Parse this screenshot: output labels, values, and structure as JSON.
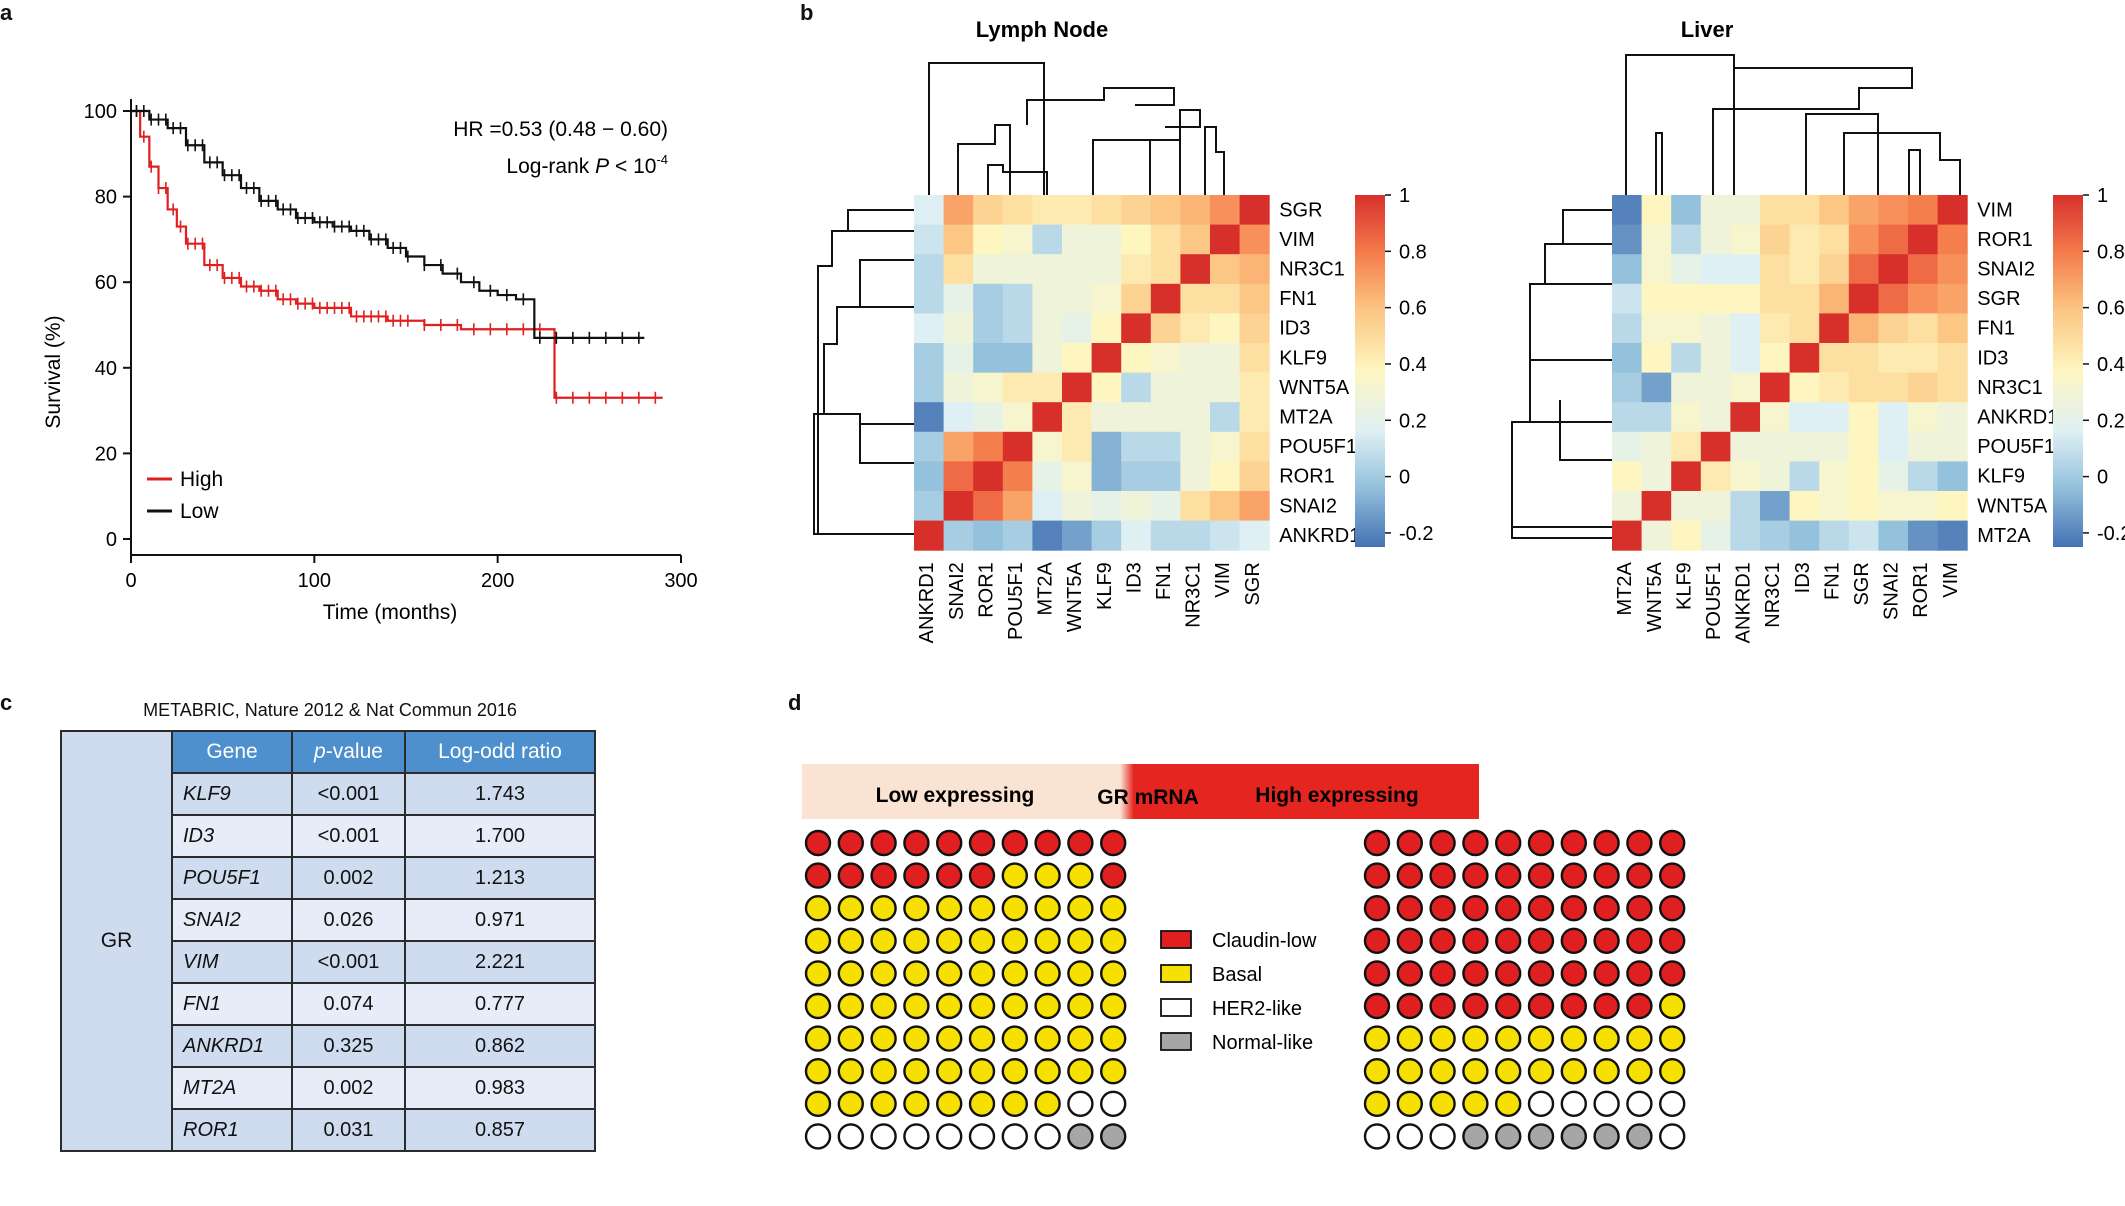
{
  "panels": {
    "a": "a",
    "b": "b",
    "c": "c",
    "d": "d"
  },
  "survival": {
    "ylabel": "Survival (%)",
    "xlabel": "Time (months)",
    "yticks": [
      "0",
      "20",
      "40",
      "60",
      "80",
      "100"
    ],
    "xticks": [
      "0",
      "100",
      "200",
      "300"
    ],
    "hr_text": "HR =0.53 (0.48 − 0.60)",
    "pval_prefix": "Log-rank ",
    "pval_p": "P",
    "pval_mid": " < 10",
    "pval_exp": "-4",
    "legend": [
      {
        "label": "High",
        "color": "#e02020"
      },
      {
        "label": "Low",
        "color": "#111111"
      }
    ]
  },
  "chart_data": [
    {
      "type": "line",
      "title": "",
      "xlabel": "Time (months)",
      "ylabel": "Survival (%)",
      "xlim": [
        0,
        300
      ],
      "ylim": [
        0,
        100
      ],
      "series": [
        {
          "name": "High",
          "color": "#e02020",
          "x": [
            0,
            5,
            10,
            15,
            20,
            25,
            30,
            40,
            50,
            60,
            70,
            80,
            90,
            100,
            120,
            140,
            160,
            180,
            200,
            215,
            230,
            231,
            290
          ],
          "y": [
            100,
            94,
            87,
            82,
            77,
            73,
            69,
            64,
            61,
            59,
            58,
            56,
            55,
            54,
            52,
            51,
            50,
            49,
            49,
            49,
            49,
            33,
            33
          ]
        },
        {
          "name": "Low",
          "color": "#111111",
          "x": [
            0,
            10,
            20,
            30,
            40,
            50,
            60,
            70,
            80,
            90,
            100,
            110,
            120,
            130,
            140,
            150,
            160,
            170,
            180,
            190,
            200,
            210,
            220,
            230,
            280
          ],
          "y": [
            100,
            98,
            96,
            92,
            88,
            85,
            82,
            79,
            77,
            75,
            74,
            73,
            72,
            70,
            68,
            66,
            64,
            62,
            60,
            58,
            57,
            56,
            47,
            47,
            47
          ]
        }
      ]
    },
    {
      "type": "heatmap",
      "title": "Lymph Node",
      "rows": [
        "SGR",
        "VIM",
        "NR3C1",
        "FN1",
        "ID3",
        "KLF9",
        "WNT5A",
        "MT2A",
        "POU5F1",
        "ROR1",
        "SNAI2",
        "ANKRD1"
      ],
      "cols": [
        "ANKRD1",
        "SNAI2",
        "ROR1",
        "POU5F1",
        "MT2A",
        "WNT5A",
        "KLF9",
        "ID3",
        "FN1",
        "NR3C1",
        "VIM",
        "SGR"
      ],
      "values": [
        [
          0.2,
          0.7,
          0.55,
          0.5,
          0.45,
          0.45,
          0.5,
          0.55,
          0.6,
          0.65,
          0.75,
          1
        ],
        [
          0.15,
          0.6,
          0.4,
          0.35,
          0.1,
          0.3,
          0.3,
          0.4,
          0.5,
          0.6,
          1,
          0.75
        ],
        [
          0.1,
          0.5,
          0.3,
          0.3,
          0.3,
          0.3,
          0.3,
          0.45,
          0.5,
          1,
          0.6,
          0.65
        ],
        [
          0.1,
          0.25,
          0.05,
          0.1,
          0.3,
          0.3,
          0.35,
          0.55,
          1,
          0.5,
          0.5,
          0.6
        ],
        [
          0.2,
          0.3,
          0.05,
          0.1,
          0.3,
          0.25,
          0.4,
          1,
          0.55,
          0.45,
          0.4,
          0.55
        ],
        [
          0.05,
          0.25,
          0.0,
          0.0,
          0.3,
          0.4,
          1,
          0.4,
          0.35,
          0.3,
          0.3,
          0.5
        ],
        [
          0.05,
          0.3,
          0.35,
          0.45,
          0.45,
          1,
          0.4,
          0.1,
          0.3,
          0.3,
          0.3,
          0.45
        ],
        [
          -0.2,
          0.2,
          0.25,
          0.35,
          1,
          0.45,
          0.3,
          0.3,
          0.3,
          0.3,
          0.1,
          0.45
        ],
        [
          0.05,
          0.7,
          0.8,
          1,
          0.35,
          0.45,
          -0.05,
          0.1,
          0.1,
          0.3,
          0.35,
          0.5
        ],
        [
          0.0,
          0.85,
          1,
          0.8,
          0.25,
          0.35,
          -0.05,
          0.05,
          0.05,
          0.3,
          0.4,
          0.55
        ],
        [
          0.05,
          1,
          0.85,
          0.7,
          0.2,
          0.3,
          0.25,
          0.3,
          0.25,
          0.5,
          0.6,
          0.7
        ],
        [
          1,
          0.05,
          0.0,
          0.05,
          -0.2,
          -0.1,
          0.05,
          0.2,
          0.1,
          0.1,
          0.15,
          0.2
        ]
      ],
      "colorbar_ticks": [
        "1",
        "0.8",
        "0.6",
        "0.4",
        "0.2",
        "0",
        "-0.2"
      ]
    },
    {
      "type": "heatmap",
      "title": "Liver",
      "rows": [
        "VIM",
        "ROR1",
        "SNAI2",
        "SGR",
        "FN1",
        "ID3",
        "NR3C1",
        "ANKRD1",
        "POU5F1",
        "KLF9",
        "WNT5A",
        "MT2A"
      ],
      "cols": [
        "MT2A",
        "WNT5A",
        "KLF9",
        "POU5F1",
        "ANKRD1",
        "NR3C1",
        "ID3",
        "FN1",
        "SGR",
        "SNAI2",
        "ROR1",
        "VIM"
      ],
      "values": [
        [
          -0.2,
          0.4,
          0.0,
          0.3,
          0.3,
          0.5,
          0.5,
          0.6,
          0.7,
          0.75,
          0.8,
          1
        ],
        [
          -0.15,
          0.35,
          0.1,
          0.3,
          0.35,
          0.55,
          0.45,
          0.5,
          0.75,
          0.85,
          1,
          0.8
        ],
        [
          0.0,
          0.35,
          0.25,
          0.2,
          0.2,
          0.5,
          0.45,
          0.55,
          0.85,
          1,
          0.85,
          0.75
        ],
        [
          0.15,
          0.4,
          0.4,
          0.4,
          0.4,
          0.5,
          0.5,
          0.65,
          1,
          0.85,
          0.75,
          0.7
        ],
        [
          0.1,
          0.35,
          0.35,
          0.3,
          0.2,
          0.45,
          0.5,
          1,
          0.65,
          0.55,
          0.5,
          0.6
        ],
        [
          0.0,
          0.4,
          0.1,
          0.3,
          0.2,
          0.4,
          1,
          0.5,
          0.5,
          0.45,
          0.45,
          0.5
        ],
        [
          0.05,
          -0.1,
          0.3,
          0.3,
          0.35,
          1,
          0.4,
          0.45,
          0.5,
          0.5,
          0.55,
          0.5
        ],
        [
          0.1,
          0.1,
          0.35,
          0.3,
          1,
          0.35,
          0.2,
          0.2,
          0.4,
          0.2,
          0.35,
          0.3
        ],
        [
          0.25,
          0.3,
          0.45,
          1,
          0.3,
          0.3,
          0.3,
          0.3,
          0.4,
          0.2,
          0.3,
          0.3
        ],
        [
          0.4,
          0.3,
          1,
          0.45,
          0.35,
          0.3,
          0.1,
          0.35,
          0.4,
          0.25,
          0.1,
          0.0
        ],
        [
          0.3,
          1,
          0.3,
          0.3,
          0.1,
          -0.1,
          0.4,
          0.35,
          0.4,
          0.35,
          0.35,
          0.4
        ],
        [
          1,
          0.3,
          0.4,
          0.25,
          0.1,
          0.05,
          0.0,
          0.1,
          0.15,
          0.0,
          -0.15,
          -0.2
        ]
      ],
      "colorbar_ticks": [
        "1",
        "0.8",
        "0.6",
        "0.4",
        "0.2",
        "0",
        "-0.2"
      ]
    }
  ],
  "table": {
    "title": "METABRIC, Nature 2012 & Nat Commun 2016",
    "group": "GR",
    "headers": {
      "gene": "Gene",
      "pvalue_p": "p",
      "pvalue_rest": "-value",
      "logodd": "Log-odd ratio"
    },
    "rows": [
      {
        "gene": "KLF9",
        "p": "<0.001",
        "lor": "1.743"
      },
      {
        "gene": "ID3",
        "p": "<0.001",
        "lor": "1.700"
      },
      {
        "gene": "POU5F1",
        "p": "0.002",
        "lor": "1.213"
      },
      {
        "gene": "SNAI2",
        "p": "0.026",
        "lor": "0.971"
      },
      {
        "gene": "VIM",
        "p": "<0.001",
        "lor": "2.221"
      },
      {
        "gene": "FN1",
        "p": "0.074",
        "lor": "0.777"
      },
      {
        "gene": "ANKRD1",
        "p": "0.325",
        "lor": "0.862"
      },
      {
        "gene": "MT2A",
        "p": "0.002",
        "lor": "0.983"
      },
      {
        "gene": "ROR1",
        "p": "0.031",
        "lor": "0.857"
      }
    ]
  },
  "dots": {
    "bar_low": "Low expressing",
    "bar_mid": "GR mRNA",
    "bar_high": "High expressing",
    "colors": {
      "Claudin-low": "#e02020",
      "Basal": "#f6e000",
      "HER2-like": "#ffffff",
      "Normal-like": "#a6a6a6"
    },
    "legend": [
      "Claudin-low",
      "Basal",
      "HER2-like",
      "Normal-like"
    ],
    "low_grid": [
      "CCCCCCCCCC",
      "CCCCCCBBBC",
      "BBBBBBBBBB",
      "BBBBBBBBBB",
      "BBBBBBBBBB",
      "BBBBBBBBBB",
      "BBBBBBBBBB",
      "BBBBBBBBBB",
      "BBBBBBBBHH",
      "HHHHHHHHNN"
    ],
    "high_grid": [
      "CCCCCCCCCC",
      "CCCCCCCCCC",
      "CCCCCCCCCC",
      "CCCCCCCCCC",
      "CCCCCCCCCC",
      "CCCCCCCCCB",
      "BBBBBBBBBB",
      "BBBBBBBBBB",
      "BBBBBHHHHH",
      "HHHNNNNNNH"
    ]
  }
}
